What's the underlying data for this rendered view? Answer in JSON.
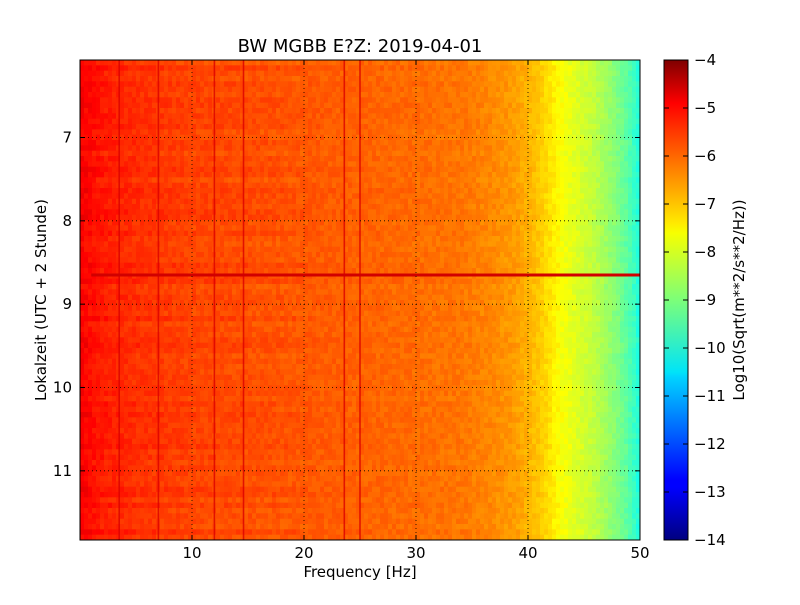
{
  "chart_data": {
    "type": "heatmap",
    "title": "BW MGBB E?Z: 2019-04-01",
    "xlabel": "Frequency [Hz]",
    "ylabel": "Lokalzeit (UTC + 2 Stunde)",
    "xlim": [
      0,
      50
    ],
    "ylim": [
      6.07,
      11.83
    ],
    "y_inverted": true,
    "x_ticks": [
      10,
      20,
      30,
      40,
      50
    ],
    "y_ticks": [
      7,
      8,
      9,
      10,
      11
    ],
    "grid": true,
    "colormap": "jet",
    "colorbar": {
      "label": "Log10(Sqrt(m**2/s**2/Hz))",
      "range": [
        -14,
        -4
      ],
      "ticks": [
        -4,
        -5,
        -6,
        -7,
        -8,
        -9,
        -10,
        -11,
        -12,
        -13,
        -14
      ]
    },
    "spectrum_profile": {
      "frequency_hz": [
        0,
        2,
        5,
        10,
        15,
        20,
        25,
        30,
        34,
        37,
        39,
        40,
        41,
        42,
        43,
        44,
        45,
        46,
        47,
        48,
        49,
        50
      ],
      "log10_psd": [
        -5.2,
        -5.5,
        -5.7,
        -5.9,
        -6.0,
        -6.1,
        -6.2,
        -6.3,
        -6.4,
        -6.6,
        -6.8,
        -7.0,
        -7.2,
        -7.5,
        -7.8,
        -8.0,
        -8.2,
        -8.4,
        -8.7,
        -9.0,
        -9.4,
        -10.0
      ]
    },
    "line_features": {
      "vertical_lines_hz": [
        3.5,
        7.0,
        12.0,
        14.6,
        23.6,
        25.0
      ],
      "horizontal_line_time": 8.65,
      "horizontal_line_value": -4.8
    }
  }
}
